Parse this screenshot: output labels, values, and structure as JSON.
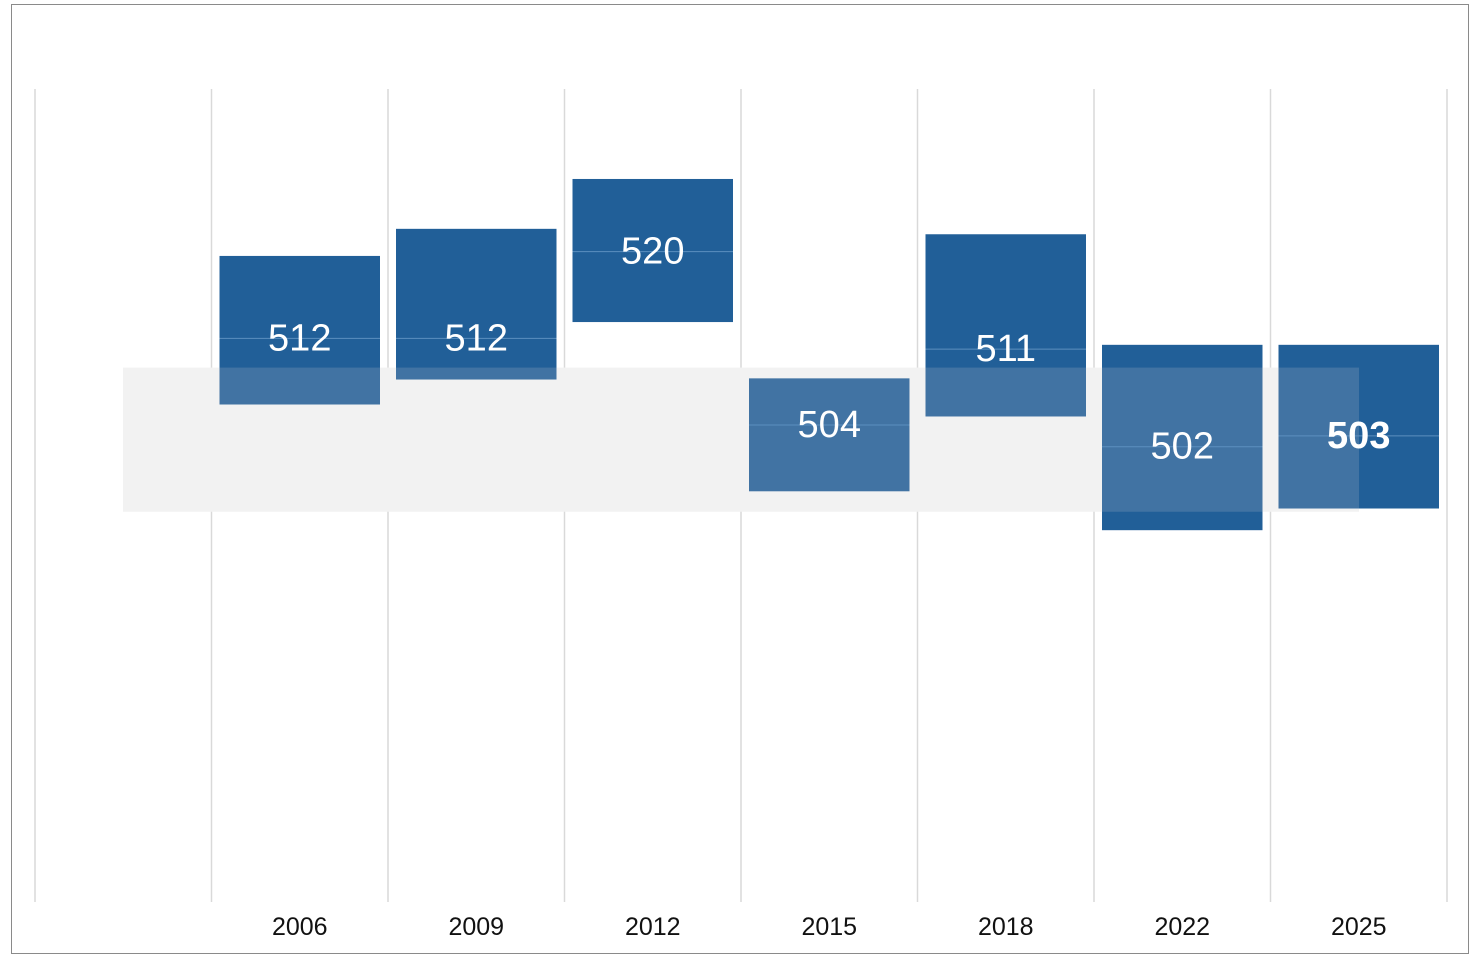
{
  "chart_data": {
    "type": "box",
    "categories": [
      "2006",
      "2009",
      "2012",
      "2015",
      "2018",
      "2022",
      "2025"
    ],
    "series": [
      {
        "values": [
          512,
          512,
          520,
          504,
          511,
          502,
          503
        ],
        "lower": [
          505.9,
          508.2,
          513.5,
          497.9,
          504.8,
          494.3,
          496.3
        ],
        "upper": [
          519.6,
          522.1,
          526.7,
          508.3,
          521.6,
          511.4,
          511.4
        ]
      }
    ],
    "highlight_category": "2025",
    "reference_band": {
      "lower": 496.0,
      "upper": 509.3
    },
    "ylim": [
      460,
      535
    ],
    "grid": {
      "vertical": true,
      "horizontal": false
    },
    "colors": {
      "box": "#215f98",
      "box_over_band": "#4173a3",
      "band": "#f2f2f2",
      "grid": "#d9d9d9",
      "label": "#ffffff"
    }
  }
}
